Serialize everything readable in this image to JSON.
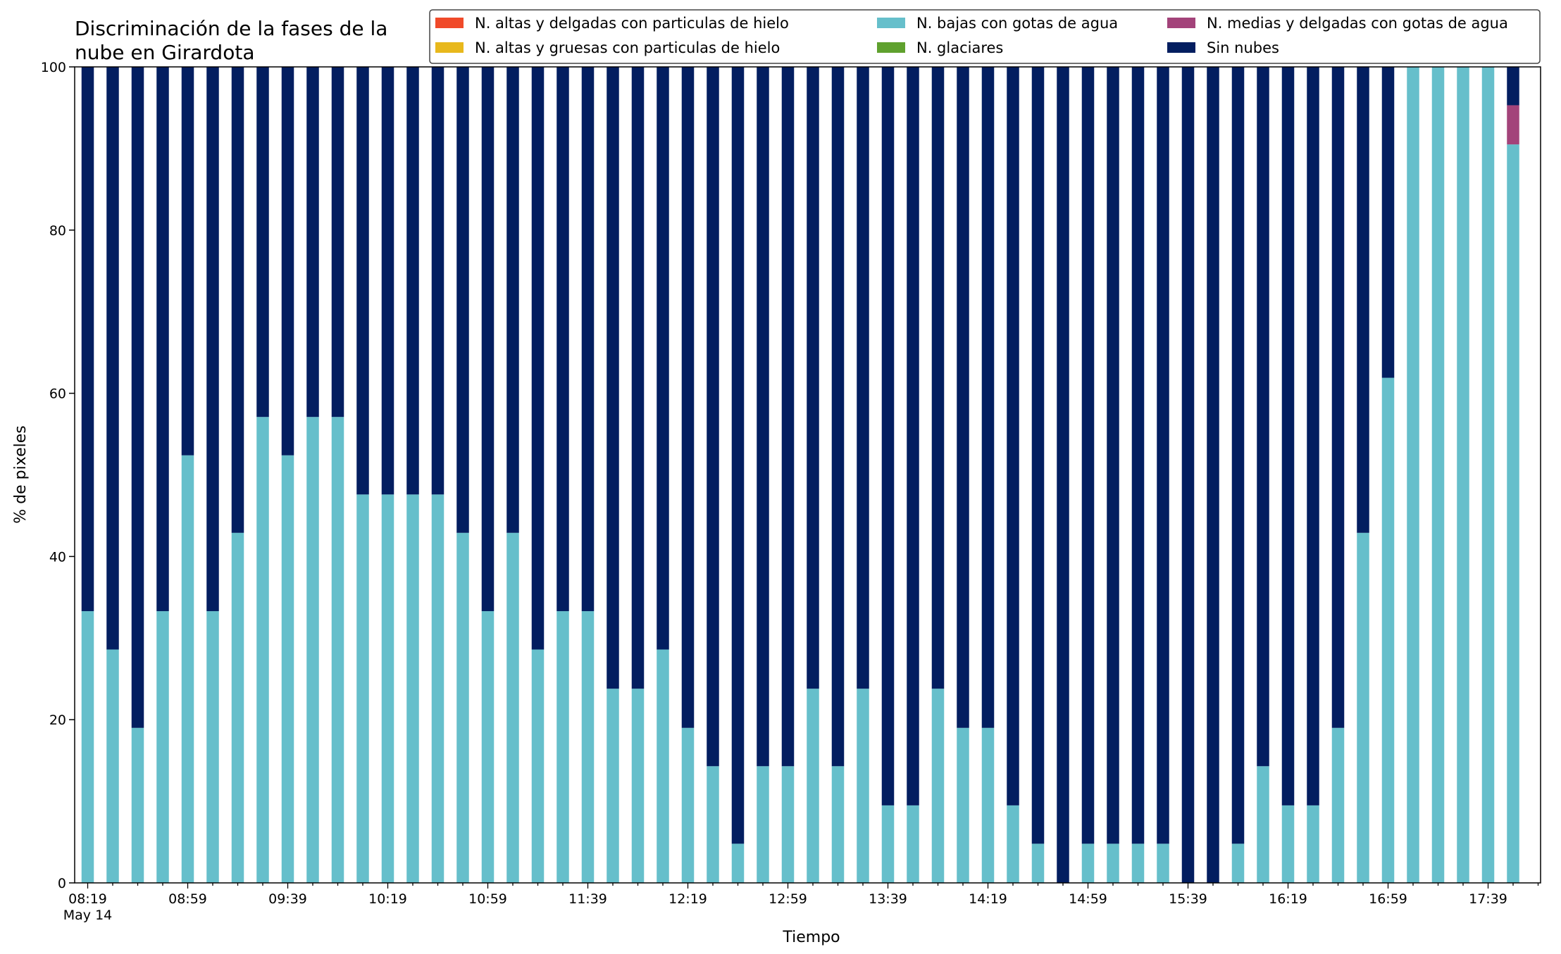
{
  "chart_data": {
    "type": "bar",
    "stacked": true,
    "title_lines": [
      "Discriminación de la fases de la",
      "nube en Girardota"
    ],
    "xlabel": "Tiempo",
    "ylabel": "% de pixeles",
    "ylim": [
      0,
      100
    ],
    "yticks": [
      "0",
      "20",
      "40",
      "60",
      "80",
      "100"
    ],
    "xticks": [
      "08:19",
      "08:59",
      "09:39",
      "10:19",
      "10:59",
      "11:39",
      "12:19",
      "12:59",
      "13:39",
      "14:19",
      "14:59",
      "15:39",
      "16:19",
      "16:59",
      "17:39"
    ],
    "xtick_sublabel": "May 14",
    "legend_position": "top-right",
    "grid": false,
    "categories": [
      "08:19",
      "08:29",
      "08:39",
      "08:49",
      "08:59",
      "09:09",
      "09:19",
      "09:29",
      "09:39",
      "09:49",
      "09:59",
      "10:09",
      "10:19",
      "10:29",
      "10:39",
      "10:49",
      "10:59",
      "11:09",
      "11:19",
      "11:29",
      "11:39",
      "11:49",
      "11:59",
      "12:09",
      "12:19",
      "12:29",
      "12:39",
      "12:49",
      "12:59",
      "13:09",
      "13:19",
      "13:29",
      "13:39",
      "13:49",
      "13:59",
      "14:09",
      "14:19",
      "14:29",
      "14:39",
      "14:49",
      "14:59",
      "15:09",
      "15:19",
      "15:29",
      "15:39",
      "15:49",
      "15:59",
      "16:09",
      "16:19",
      "16:29",
      "16:39",
      "16:49",
      "16:59",
      "17:09",
      "17:19",
      "17:29",
      "17:39",
      "17:49"
    ],
    "series": [
      {
        "name": "N. altas y delgadas con particulas de hielo",
        "color": "#f04a2a",
        "values": [
          0,
          0,
          0,
          0,
          0,
          0,
          0,
          0,
          0,
          0,
          0,
          0,
          0,
          0,
          0,
          0,
          0,
          0,
          0,
          0,
          0,
          0,
          0,
          0,
          0,
          0,
          0,
          0,
          0,
          0,
          0,
          0,
          0,
          0,
          0,
          0,
          0,
          0,
          0,
          0,
          0,
          0,
          0,
          0,
          0,
          0,
          0,
          0,
          0,
          0,
          0,
          0,
          0,
          0,
          0,
          0,
          0,
          0
        ]
      },
      {
        "name": "N. altas y gruesas con particulas de hielo",
        "color": "#e8b81c",
        "values": [
          0,
          0,
          0,
          0,
          0,
          0,
          0,
          0,
          0,
          0,
          0,
          0,
          0,
          0,
          0,
          0,
          0,
          0,
          0,
          0,
          0,
          0,
          0,
          0,
          0,
          0,
          0,
          0,
          0,
          0,
          0,
          0,
          0,
          0,
          0,
          0,
          0,
          0,
          0,
          0,
          0,
          0,
          0,
          0,
          0,
          0,
          0,
          0,
          0,
          0,
          0,
          0,
          0,
          0,
          0,
          0,
          0,
          0
        ]
      },
      {
        "name": "N. bajas con gotas de agua",
        "color": "#66bfcb",
        "values": [
          33.3,
          28.6,
          19,
          33.3,
          52.4,
          33.3,
          42.9,
          57.1,
          52.4,
          57.1,
          57.1,
          47.6,
          47.6,
          47.6,
          47.6,
          42.9,
          33.3,
          42.9,
          28.6,
          33.3,
          33.3,
          23.8,
          23.8,
          28.6,
          19,
          14.3,
          4.8,
          14.3,
          14.3,
          23.8,
          14.3,
          23.8,
          9.5,
          9.5,
          23.8,
          19,
          19,
          9.5,
          4.8,
          0,
          4.8,
          4.8,
          4.8,
          4.8,
          0,
          0,
          4.8,
          14.3,
          9.5,
          9.5,
          19,
          42.9,
          61.9,
          100,
          100,
          100,
          100,
          90.5
        ]
      },
      {
        "name": "N. glaciares",
        "color": "#5fa12e",
        "values": [
          0,
          0,
          0,
          0,
          0,
          0,
          0,
          0,
          0,
          0,
          0,
          0,
          0,
          0,
          0,
          0,
          0,
          0,
          0,
          0,
          0,
          0,
          0,
          0,
          0,
          0,
          0,
          0,
          0,
          0,
          0,
          0,
          0,
          0,
          0,
          0,
          0,
          0,
          0,
          0,
          0,
          0,
          0,
          0,
          0,
          0,
          0,
          0,
          0,
          0,
          0,
          0,
          0,
          0,
          0,
          0,
          0,
          0
        ]
      },
      {
        "name": "N. medias y delgadas con gotas de agua",
        "color": "#a3437a",
        "values": [
          0,
          0,
          0,
          0,
          0,
          0,
          0,
          0,
          0,
          0,
          0,
          0,
          0,
          0,
          0,
          0,
          0,
          0,
          0,
          0,
          0,
          0,
          0,
          0,
          0,
          0,
          0,
          0,
          0,
          0,
          0,
          0,
          0,
          0,
          0,
          0,
          0,
          0,
          0,
          0,
          0,
          0,
          0,
          0,
          0,
          0,
          0,
          0,
          0,
          0,
          0,
          0,
          0,
          0,
          0,
          0,
          0,
          4.8
        ]
      },
      {
        "name": "Sin nubes",
        "color": "#031e60",
        "values": [
          66.7,
          71.4,
          81,
          66.7,
          47.6,
          66.7,
          57.1,
          42.9,
          47.6,
          42.9,
          42.9,
          52.4,
          52.4,
          52.4,
          52.4,
          57.1,
          66.7,
          57.1,
          71.4,
          66.7,
          66.7,
          76.2,
          76.2,
          71.4,
          81,
          85.7,
          95.2,
          85.7,
          85.7,
          76.2,
          85.7,
          76.2,
          90.5,
          90.5,
          76.2,
          81,
          81,
          90.5,
          95.2,
          100,
          95.2,
          95.2,
          95.2,
          95.2,
          100,
          100,
          95.2,
          85.7,
          90.5,
          90.5,
          81,
          57.1,
          38.1,
          0,
          0,
          0,
          0,
          4.7
        ]
      }
    ]
  }
}
